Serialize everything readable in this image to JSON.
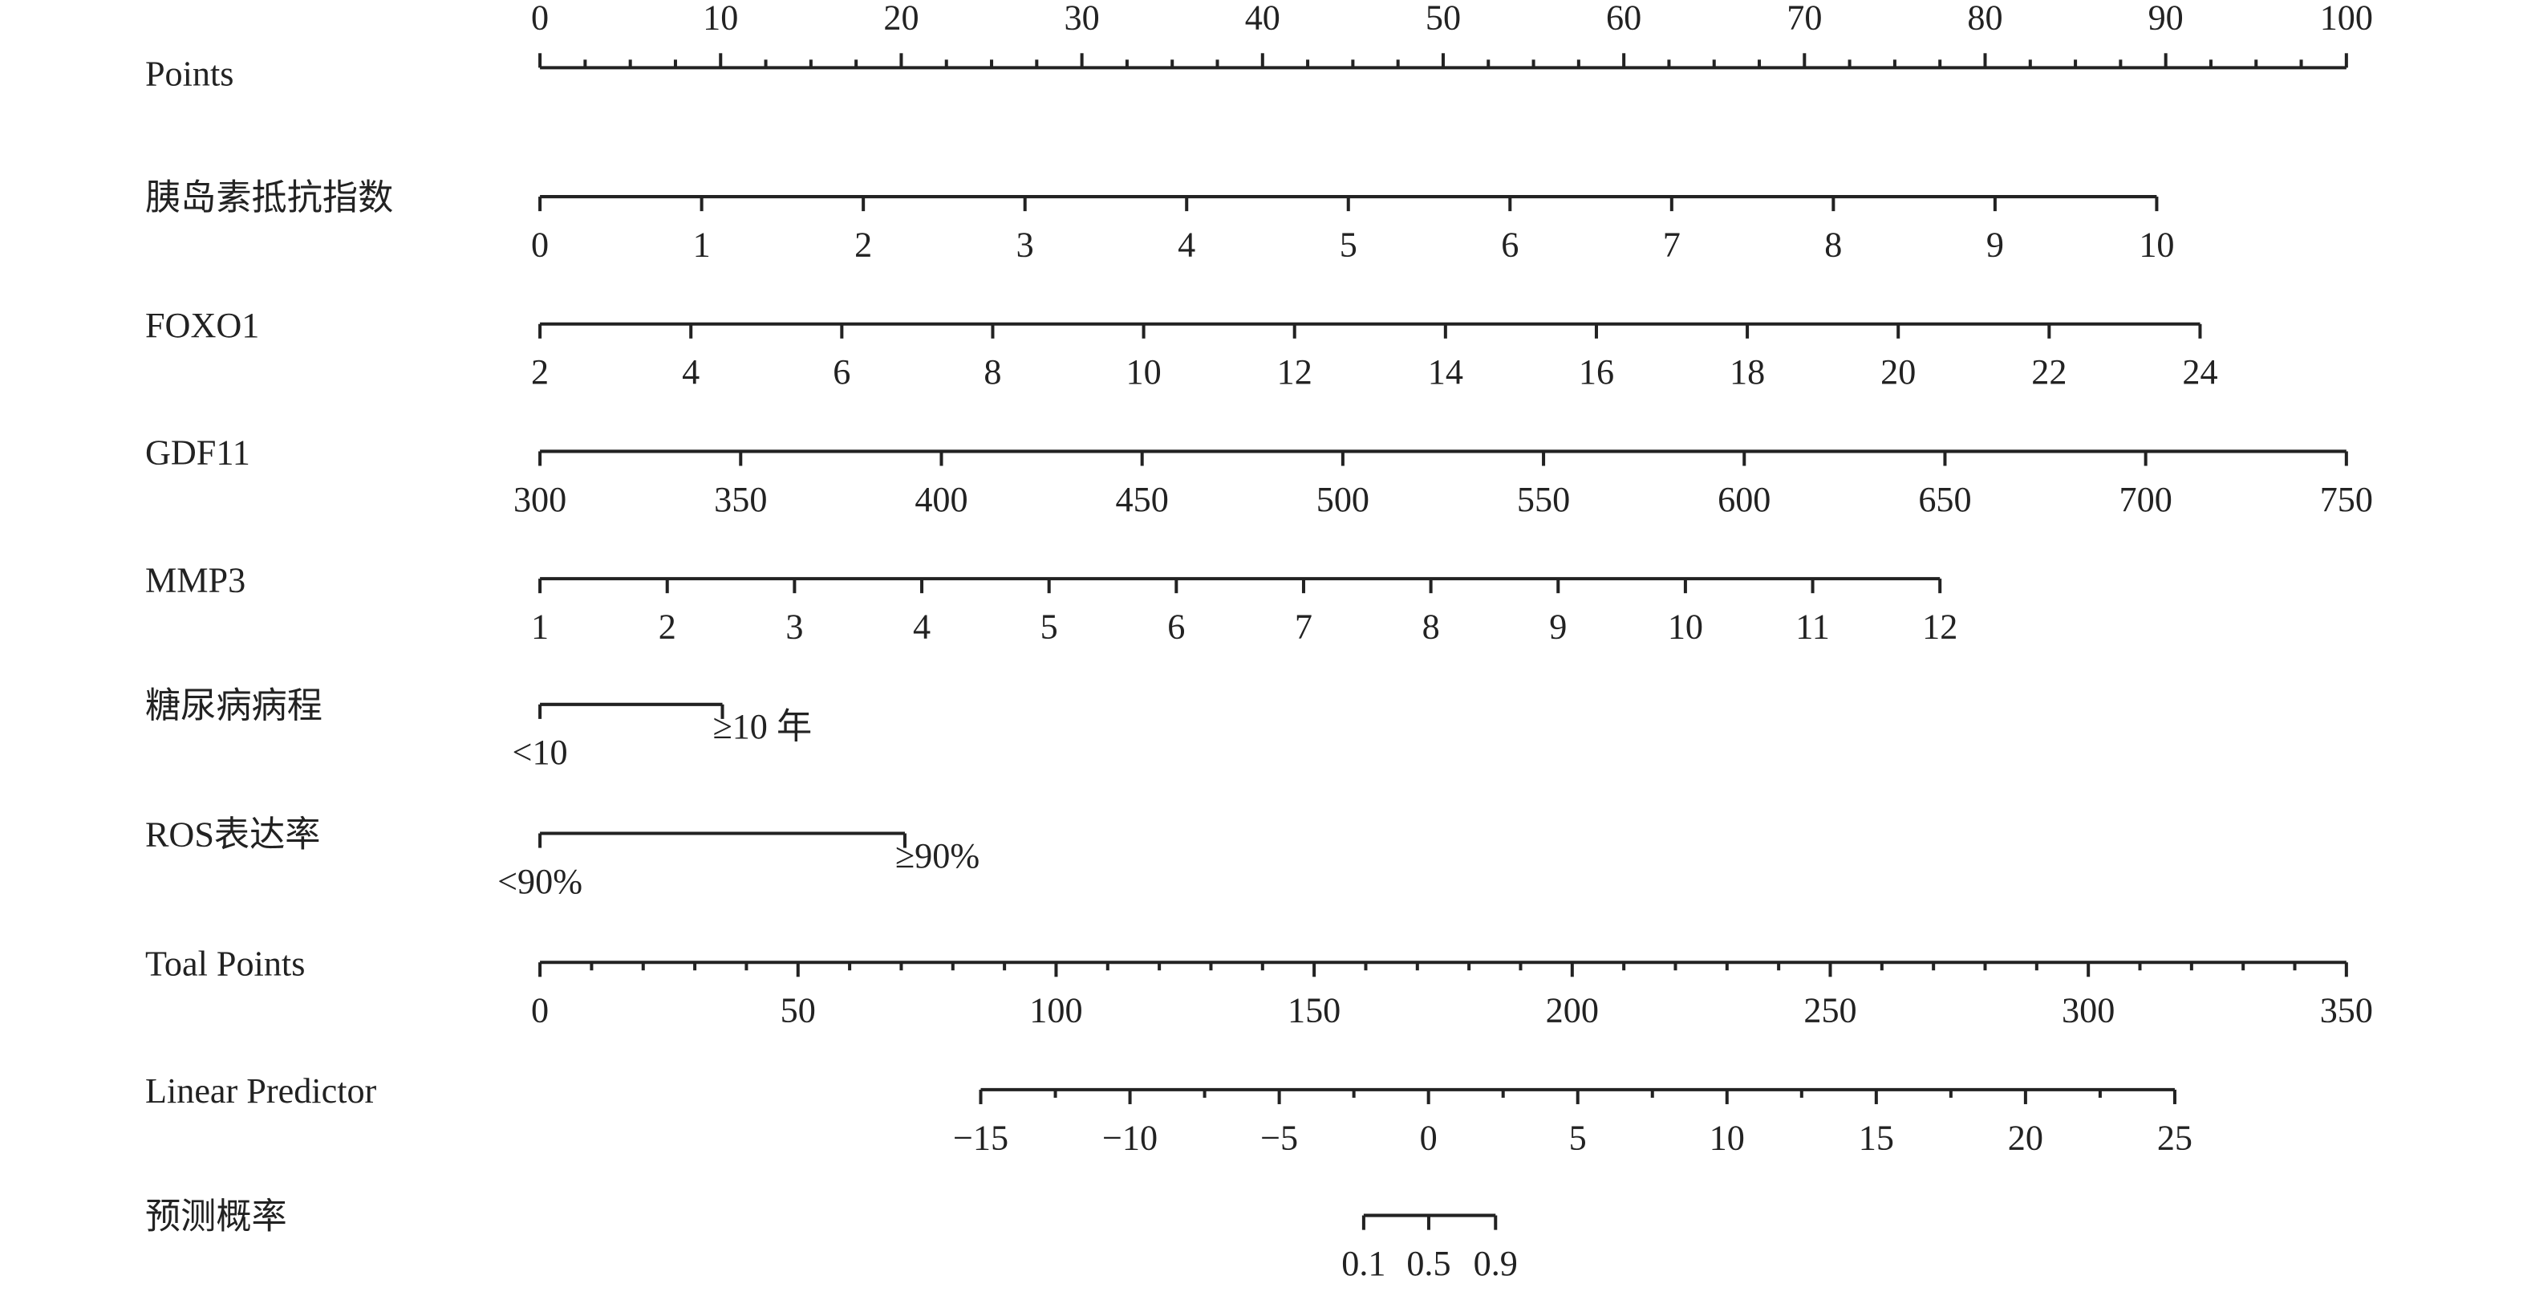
{
  "chart_data": {
    "type": "nomogram",
    "rows": [
      {
        "label": "Points",
        "ticks": [
          0,
          10,
          20,
          30,
          40,
          50,
          60,
          70,
          80,
          90,
          100
        ],
        "at": [
          0,
          100
        ],
        "minor_ticks": [
          2.5,
          5,
          7.5,
          12.5,
          15,
          17.5,
          22.5,
          25,
          27.5,
          32.5,
          35,
          37.5,
          42.5,
          45,
          47.5,
          52.5,
          55,
          57.5,
          62.5,
          65,
          67.5,
          72.5,
          75,
          77.5,
          82.5,
          85,
          87.5,
          92.5,
          95,
          97.5
        ],
        "labels_above": true
      },
      {
        "label": "胰岛素抵抗指数",
        "ticks": [
          0,
          1,
          2,
          3,
          4,
          5,
          6,
          7,
          8,
          9,
          10
        ],
        "at": [
          0,
          89.5
        ]
      },
      {
        "label": "FOXO1",
        "ticks": [
          2,
          4,
          6,
          8,
          10,
          12,
          14,
          16,
          18,
          20,
          22,
          24
        ],
        "at": [
          0,
          91.9
        ]
      },
      {
        "label": "GDF11",
        "ticks": [
          300,
          350,
          400,
          450,
          500,
          550,
          600,
          650,
          700,
          750
        ],
        "at": [
          0,
          100
        ]
      },
      {
        "label": "MMP3",
        "ticks": [
          1,
          2,
          3,
          4,
          5,
          6,
          7,
          8,
          9,
          10,
          11,
          12
        ],
        "at": [
          0,
          77.5
        ]
      },
      {
        "label": "糖尿病病程",
        "ticks": [
          {
            "value": 0,
            "label": "<10"
          },
          {
            "value": 1,
            "label": "≥10 年"
          }
        ],
        "at": [
          0,
          10.1
        ]
      },
      {
        "label": "ROS表达率",
        "ticks": [
          {
            "value": 0,
            "label": "<90%"
          },
          {
            "value": 1,
            "label": "≥90%"
          }
        ],
        "at": [
          0,
          20.2
        ]
      },
      {
        "label": "Toal Points",
        "ticks": [
          0,
          50,
          100,
          150,
          200,
          250,
          300,
          350
        ],
        "at": [
          0,
          100
        ],
        "minor_ticks": [
          10,
          20,
          30,
          40,
          60,
          70,
          80,
          90,
          110,
          120,
          130,
          140,
          160,
          170,
          180,
          190,
          210,
          220,
          230,
          240,
          260,
          270,
          280,
          290,
          310,
          320,
          330,
          340
        ]
      },
      {
        "label": "Linear Predictor",
        "ticks": [
          {
            "value": -15,
            "label": "−15"
          },
          {
            "value": -10,
            "label": "−10"
          },
          {
            "value": -5,
            "label": "−5"
          },
          0,
          5,
          10,
          15,
          20,
          25
        ],
        "at": [
          24.4,
          90.5
        ],
        "minor_ticks": [
          -12.5,
          -7.5,
          -2.5,
          2.5,
          7.5,
          12.5,
          17.5,
          22.5
        ]
      },
      {
        "label": "预测概率",
        "ticks": [
          0.1,
          0.5,
          0.9
        ],
        "tick_at": [
          45.6,
          49.2,
          52.9
        ]
      }
    ]
  }
}
